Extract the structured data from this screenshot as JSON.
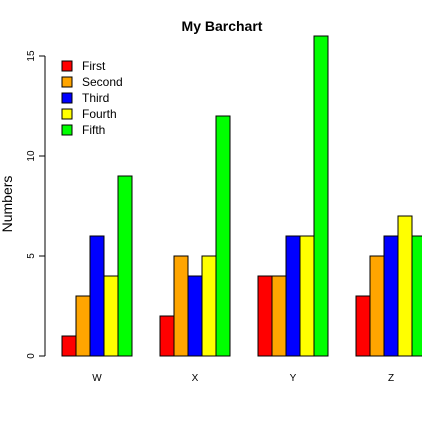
{
  "chart_data": {
    "type": "bar",
    "title": "My Barchart",
    "ylabel": "Numbers",
    "xlabel": "",
    "categories": [
      "W",
      "X",
      "Y",
      "Z"
    ],
    "ylim": [
      0,
      16
    ],
    "yticks": [
      0,
      5,
      10,
      15
    ],
    "grid": false,
    "legend_position": "top-left",
    "series": [
      {
        "name": "First",
        "color": "#ff0000",
        "values": [
          1,
          2,
          4,
          3
        ]
      },
      {
        "name": "Second",
        "color": "#ffa500",
        "values": [
          3,
          5,
          4,
          5
        ]
      },
      {
        "name": "Third",
        "color": "#0000ff",
        "values": [
          6,
          4,
          6,
          6
        ]
      },
      {
        "name": "Fourth",
        "color": "#ffff00",
        "values": [
          4,
          5,
          6,
          7
        ]
      },
      {
        "name": "Fifth",
        "color": "#00ff00",
        "values": [
          9,
          12,
          16,
          6
        ]
      }
    ]
  }
}
